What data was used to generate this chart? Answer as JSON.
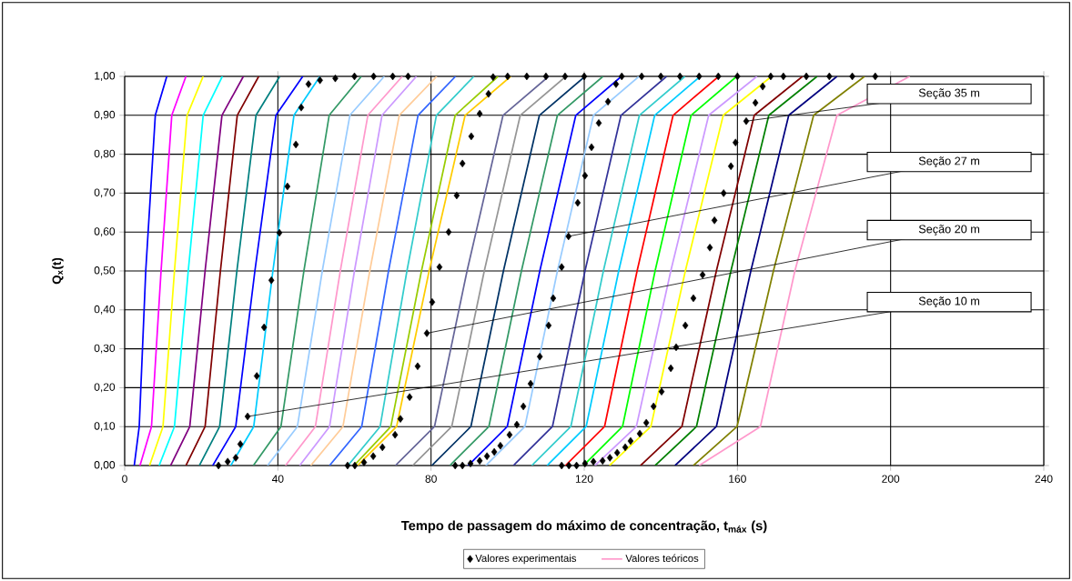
{
  "chart_data": {
    "type": "line",
    "xlabel": "Tempo de passagem do máximo de concentração, t$_{máx}$ (s)",
    "ylabel": "Q$_{x}$(t)",
    "xlim": [
      0,
      240
    ],
    "xticks": [
      0,
      40,
      80,
      120,
      160,
      200,
      240
    ],
    "ylim": [
      0,
      1
    ],
    "yticks": [
      {
        "value": 0,
        "label": "0,00"
      },
      {
        "value": 0.1,
        "label": "0,10"
      },
      {
        "value": 0.2,
        "label": "0,20"
      },
      {
        "value": 0.3,
        "label": "0,30"
      },
      {
        "value": 0.4,
        "label": "0,40"
      },
      {
        "value": 0.5,
        "label": "0,50"
      },
      {
        "value": 0.6,
        "label": "0,60"
      },
      {
        "value": 0.7,
        "label": "0,70"
      },
      {
        "value": 0.8,
        "label": "0,80"
      },
      {
        "value": 0.9,
        "label": "0,90"
      },
      {
        "value": 1,
        "label": "1,00"
      }
    ],
    "grid": true,
    "legend": "bottom",
    "annotations": [
      {
        "text": "Seção 35 m",
        "x": 162.3,
        "y": 0.885
      },
      {
        "text": "Seção 27 m",
        "x": 115.9,
        "y": 0.589
      },
      {
        "text": "Seção 20 m",
        "x": 78.9,
        "y": 0.34
      },
      {
        "text": "Seção 10 m",
        "x": 32.1,
        "y": 0.126
      }
    ],
    "series": [
      {
        "type": "line",
        "color": "#0000ff",
        "x": [
          2.5,
          3.8,
          5.5,
          8,
          11
        ],
        "values": [
          0,
          0.1,
          0.5,
          0.9,
          1
        ]
      },
      {
        "type": "line",
        "color": "#ff00ff",
        "x": [
          4,
          7,
          9.5,
          12.3,
          16
        ],
        "values": [
          0,
          0.1,
          0.5,
          0.9,
          1
        ]
      },
      {
        "type": "line",
        "color": "#ffff00",
        "x": [
          6.5,
          10,
          13,
          16.3,
          20.5
        ],
        "values": [
          0,
          0.1,
          0.5,
          0.9,
          1
        ]
      },
      {
        "type": "line",
        "color": "#00ffff",
        "x": [
          9,
          13,
          16.6,
          20.5,
          25.5
        ],
        "values": [
          0,
          0.1,
          0.5,
          0.9,
          1
        ]
      },
      {
        "type": "line",
        "color": "#800080",
        "x": [
          12,
          17,
          21,
          25.4,
          31
        ],
        "values": [
          0,
          0.1,
          0.5,
          0.9,
          1
        ]
      },
      {
        "type": "line",
        "color": "#800000",
        "x": [
          16,
          21,
          25,
          29.4,
          35
        ],
        "values": [
          0,
          0.1,
          0.5,
          0.9,
          1
        ]
      },
      {
        "type": "line",
        "color": "#008080",
        "x": [
          19.5,
          24.8,
          29.3,
          34.3,
          40.5
        ],
        "values": [
          0,
          0.1,
          0.5,
          0.9,
          1
        ]
      },
      {
        "type": "line",
        "color": "#0000ff",
        "x": [
          23,
          29,
          34,
          39.5,
          46.5
        ],
        "values": [
          0,
          0.1,
          0.5,
          0.9,
          1
        ]
      },
      {
        "type": "line",
        "color": "#00ccff",
        "x": [
          27.7,
          33.7,
          38.7,
          44.2,
          51
        ],
        "values": [
          0,
          0.1,
          0.5,
          0.9,
          1
        ]
      },
      {
        "type": "line",
        "color": "#339966",
        "x": [
          33.6,
          40.8,
          46.8,
          53.4,
          61.8
        ],
        "values": [
          0,
          0.1,
          0.5,
          0.9,
          1
        ]
      },
      {
        "type": "line",
        "color": "#99ccff",
        "x": [
          37.3,
          45.1,
          51.6,
          58.8,
          67.8
        ],
        "values": [
          0,
          0.1,
          0.5,
          0.9,
          1
        ]
      },
      {
        "type": "line",
        "color": "#ff99cc",
        "x": [
          42,
          49.8,
          56.3,
          63.5,
          72.5
        ],
        "values": [
          0,
          0.1,
          0.5,
          0.9,
          1
        ]
      },
      {
        "type": "line",
        "color": "#cc99ff",
        "x": [
          45.7,
          53.5,
          60,
          67.2,
          76.2
        ],
        "values": [
          0,
          0.1,
          0.5,
          0.9,
          1
        ]
      },
      {
        "type": "line",
        "color": "#ffcc99",
        "x": [
          48.6,
          57,
          64,
          71.7,
          81.5
        ],
        "values": [
          0,
          0.1,
          0.5,
          0.9,
          1
        ]
      },
      {
        "type": "line",
        "color": "#3366ff",
        "x": [
          53.5,
          61.9,
          68.9,
          76.6,
          86.4
        ],
        "values": [
          0,
          0.1,
          0.5,
          0.9,
          1
        ]
      },
      {
        "type": "line",
        "color": "#33cccc",
        "x": [
          58.3,
          66.7,
          73.7,
          81.4,
          91.2
        ],
        "values": [
          0,
          0.1,
          0.5,
          0.9,
          1
        ]
      },
      {
        "type": "line",
        "color": "#99cc00",
        "x": [
          59.9,
          69.5,
          77.5,
          86.3,
          97.5
        ],
        "values": [
          0,
          0.1,
          0.5,
          0.9,
          1
        ]
      },
      {
        "type": "line",
        "color": "#ffcc00",
        "x": [
          60.8,
          71,
          79.5,
          88.9,
          100.8
        ],
        "values": [
          0,
          0.1,
          0.5,
          0.9,
          1
        ]
      },
      {
        "type": "line",
        "color": "#666699",
        "x": [
          70.7,
          80.9,
          89.4,
          98.8,
          110.7
        ],
        "values": [
          0,
          0.1,
          0.5,
          0.9,
          1
        ]
      },
      {
        "type": "line",
        "color": "#969696",
        "x": [
          75.2,
          85.4,
          93.9,
          103.3,
          115.2
        ],
        "values": [
          0,
          0.1,
          0.5,
          0.9,
          1
        ]
      },
      {
        "type": "line",
        "color": "#003366",
        "x": [
          80.2,
          90.4,
          98.9,
          108.3,
          120.2
        ],
        "values": [
          0,
          0.1,
          0.5,
          0.9,
          1
        ]
      },
      {
        "type": "line",
        "color": "#339966",
        "x": [
          84.9,
          95.1,
          103.6,
          113,
          124.9
        ],
        "values": [
          0,
          0.1,
          0.5,
          0.9,
          1
        ]
      },
      {
        "type": "line",
        "color": "#0000ff",
        "x": [
          89.7,
          99.9,
          108.4,
          117.8,
          129.7
        ],
        "values": [
          0,
          0.1,
          0.5,
          0.9,
          1
        ]
      },
      {
        "type": "line",
        "color": "#99ccff",
        "x": [
          94.3,
          104.5,
          113,
          122.4,
          134.3
        ],
        "values": [
          0,
          0.1,
          0.5,
          0.9,
          1
        ]
      },
      {
        "type": "line",
        "color": "#333399",
        "x": [
          101.5,
          111.7,
          120.2,
          129.6,
          141.5
        ],
        "values": [
          0,
          0.1,
          0.5,
          0.9,
          1
        ]
      },
      {
        "type": "line",
        "color": "#33cccc",
        "x": [
          106.3,
          116.5,
          125,
          134.4,
          146.3
        ],
        "values": [
          0,
          0.1,
          0.5,
          0.9,
          1
        ]
      },
      {
        "type": "line",
        "color": "#00ccff",
        "x": [
          110.3,
          120.5,
          129,
          138.4,
          150.3
        ],
        "values": [
          0,
          0.1,
          0.5,
          0.9,
          1
        ]
      },
      {
        "type": "line",
        "color": "#ff0000",
        "x": [
          115.1,
          125.3,
          133.8,
          143.2,
          155.1
        ],
        "values": [
          0,
          0.1,
          0.5,
          0.9,
          1
        ]
      },
      {
        "type": "line",
        "color": "#00ff00",
        "x": [
          119.8,
          130,
          138.5,
          147.9,
          159.8
        ],
        "values": [
          0,
          0.1,
          0.5,
          0.9,
          1
        ]
      },
      {
        "type": "line",
        "color": "#cc99ff",
        "x": [
          122.8,
          133.6,
          142.6,
          152.5,
          165.1
        ],
        "values": [
          0,
          0.1,
          0.5,
          0.9,
          1
        ]
      },
      {
        "type": "line",
        "color": "#ffff00",
        "x": [
          126.6,
          137.4,
          146.4,
          156.3,
          168.9
        ],
        "values": [
          0,
          0.1,
          0.5,
          0.9,
          1
        ]
      },
      {
        "type": "line",
        "color": "#800000",
        "x": [
          134.7,
          145.5,
          154.5,
          164.4,
          177
        ],
        "values": [
          0,
          0.1,
          0.5,
          0.9,
          1
        ]
      },
      {
        "type": "line",
        "color": "#008000",
        "x": [
          138.5,
          149.3,
          158.3,
          168.2,
          180.8
        ],
        "values": [
          0,
          0.1,
          0.5,
          0.9,
          1
        ]
      },
      {
        "type": "line",
        "color": "#000080",
        "x": [
          143.7,
          154.5,
          163.5,
          173.4,
          186
        ],
        "values": [
          0,
          0.1,
          0.5,
          0.9,
          1
        ]
      },
      {
        "type": "line",
        "color": "#808000",
        "x": [
          148.5,
          159.9,
          169.4,
          179.9,
          193.2
        ],
        "values": [
          0,
          0.1,
          0.5,
          0.9,
          1
        ]
      },
      {
        "name": "Valores teóricos",
        "color": "#ff99cc",
        "x": [
          150,
          166,
          175,
          186,
          205
        ],
        "values": [
          0,
          0.1,
          0.5,
          0.9,
          1
        ]
      },
      {
        "type": "scatter",
        "name": "Valores experimentais",
        "color": "#000000",
        "marker": "diamond",
        "x": [
          24.5,
          26.9,
          29,
          30.2,
          32.1,
          34.5,
          36.4,
          38.3,
          40.4,
          42.5,
          44.7,
          46.1,
          48,
          51,
          55,
          60,
          65,
          70,
          74,
          58.2,
          60.1,
          62.5,
          64.9,
          67.3,
          70.6,
          72,
          74.4,
          76.5,
          78.9,
          80.3,
          82.2,
          84.6,
          86.7,
          88.2,
          90.5,
          92.7,
          95,
          96.2,
          100,
          105,
          110,
          115,
          120,
          86.3,
          88.2,
          90.3,
          92.7,
          94.6,
          96.5,
          98.1,
          100.5,
          102.4,
          104.1,
          106,
          108.4,
          110.7,
          111.9,
          114.1,
          115.9,
          118.3,
          120.2,
          121.9,
          123.8,
          126.2,
          128.3,
          129.8,
          135,
          140,
          145,
          150,
          155,
          160,
          114.1,
          116,
          118,
          120.2,
          122.4,
          124.8,
          126.7,
          128.6,
          130.7,
          132.1,
          134.5,
          136.2,
          138.1,
          140.2,
          142.6,
          144,
          146.4,
          148.5,
          150.9,
          152.8,
          154,
          156.4,
          158.3,
          159.5,
          162.3,
          164.7,
          166.6,
          168.7,
          172,
          178,
          184,
          190,
          196
        ],
        "values": [
          0,
          0.01,
          0.02,
          0.055,
          0.126,
          0.23,
          0.355,
          0.476,
          0.598,
          0.717,
          0.825,
          0.92,
          0.98,
          0.99,
          0.995,
          1,
          1,
          1,
          1,
          0,
          0,
          0.008,
          0.024,
          0.047,
          0.079,
          0.12,
          0.176,
          0.255,
          0.34,
          0.42,
          0.51,
          0.6,
          0.694,
          0.776,
          0.846,
          0.904,
          0.955,
          0.998,
          1,
          1,
          1,
          1,
          1,
          0,
          0,
          0.005,
          0.012,
          0.024,
          0.035,
          0.051,
          0.079,
          0.105,
          0.152,
          0.21,
          0.28,
          0.36,
          0.43,
          0.51,
          0.589,
          0.675,
          0.745,
          0.818,
          0.88,
          0.935,
          0.98,
          1,
          1,
          1,
          1,
          1,
          1,
          1,
          0,
          0,
          0,
          0.005,
          0.01,
          0.012,
          0.02,
          0.033,
          0.047,
          0.063,
          0.082,
          0.11,
          0.152,
          0.19,
          0.25,
          0.304,
          0.36,
          0.43,
          0.49,
          0.56,
          0.63,
          0.7,
          0.769,
          0.83,
          0.885,
          0.932,
          0.974,
          1,
          1,
          1,
          1,
          1,
          1
        ]
      }
    ]
  }
}
